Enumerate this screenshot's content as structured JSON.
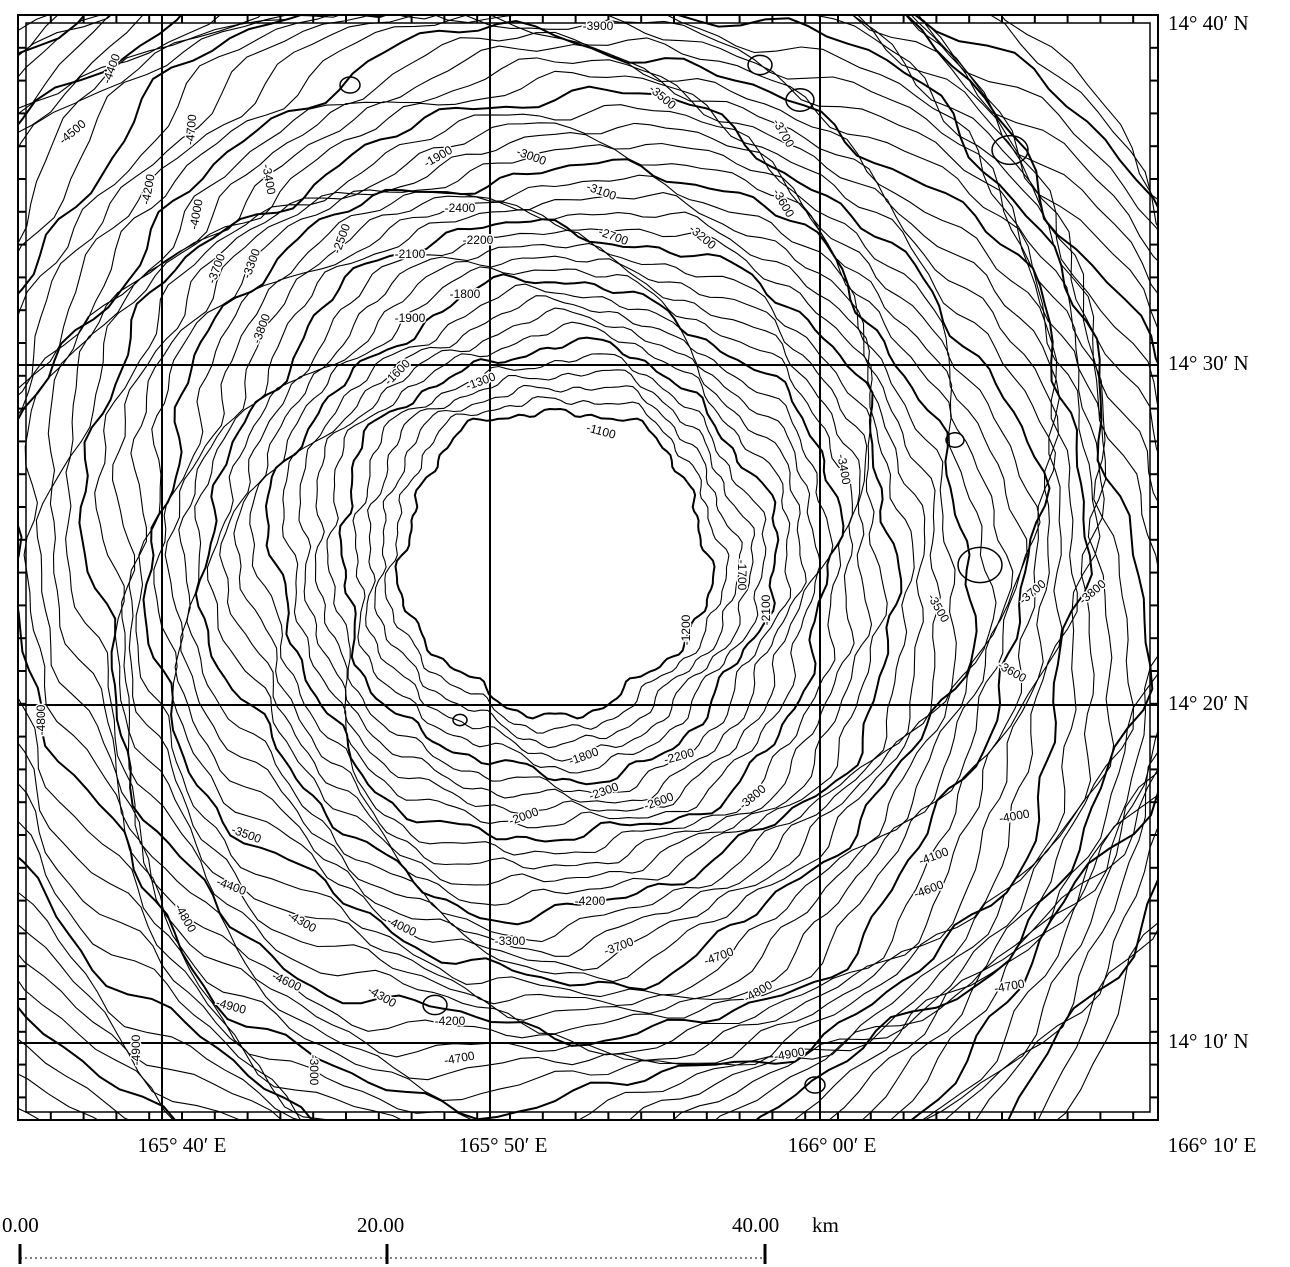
{
  "map": {
    "latitude_labels": [
      "14° 40′ N",
      "14° 30′ N",
      "14° 20′ N",
      "14° 10′ N"
    ],
    "longitude_labels": [
      "165° 40′ E",
      "165° 50′ E",
      "166° 00′ E",
      "166° 10′ E"
    ],
    "scale_bar": {
      "labels": [
        "0.00",
        "20.00",
        "40.00"
      ],
      "unit": "km"
    },
    "contour_labels": [
      "-3900",
      "-4500",
      "-4400",
      "-4700",
      "-4200",
      "-4000",
      "-3700",
      "-3400",
      "-3300",
      "-3800",
      "-2500",
      "-2100",
      "-2200",
      "-2400",
      "-1900",
      "-3000",
      "-3100",
      "-2700",
      "-3200",
      "-3500",
      "-3700",
      "-3600",
      "-1800",
      "-1900",
      "-1600",
      "-1300",
      "-1100",
      "-1200",
      "-1700",
      "-2100",
      "-3400",
      "-3500",
      "-3600",
      "-3700",
      "-3800",
      "-4800",
      "-1800",
      "-2200",
      "-2000",
      "-2300",
      "-2600",
      "-3800",
      "-3500",
      "-4400",
      "-4300",
      "-4000",
      "-4200",
      "-3300",
      "-3700",
      "-4600",
      "-4900",
      "-4300",
      "-4200",
      "-4700",
      "-4700",
      "-4800",
      "-4700",
      "-4900",
      "-4000",
      "-4100",
      "-4600",
      "-3000",
      "-4800",
      "-4900"
    ]
  }
}
